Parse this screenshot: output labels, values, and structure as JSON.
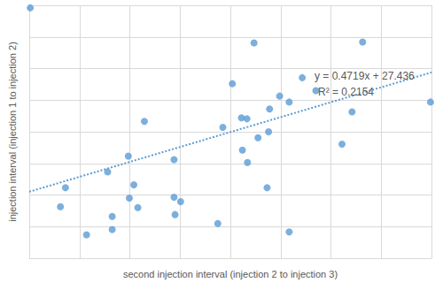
{
  "chart_data": {
    "type": "scatter",
    "x_label": "second injection interval (injection 2 to injection 3)",
    "y_label": "injection interval (injection 1 to injection 2)",
    "x": [
      50.2,
      57.2,
      56.2,
      61.4,
      65.6,
      66.5,
      66.5,
      69.7,
      69.9,
      70.8,
      71.6,
      72.9,
      78.8,
      78.8,
      79.0,
      80.1,
      87.5,
      88.5,
      90.4,
      92.2,
      92.4,
      93.4,
      93.3,
      94.7,
      95.5,
      97.3,
      97.6,
      97.8,
      99.8,
      101.7,
      101.7,
      104.3,
      107.0,
      112.2,
      114.2,
      116.3,
      129.8
    ],
    "values": [
      109.2,
      52.3,
      46.3,
      37.4,
      57.3,
      43.2,
      39.1,
      62.3,
      49.0,
      53.2,
      46.0,
      73.3,
      61.2,
      49.3,
      43.8,
      47.9,
      41.0,
      71.4,
      85.2,
      74.4,
      64.2,
      60.3,
      74.1,
      98.1,
      68.1,
      52.3,
      70.0,
      77.2,
      81.3,
      79.4,
      38.3,
      87.1,
      83.0,
      66.1,
      76.3,
      98.4,
      79.4
    ],
    "color": "#5b9bd5",
    "marker": "circle",
    "trendline": {
      "slope": 0.4719,
      "intercept": 27.436,
      "line_style": "dotted"
    },
    "annotations": [
      "y = 0.4719x + 27.436",
      "R² = 0.2154"
    ],
    "xlim": [
      50,
      130
    ],
    "xticks": [
      50,
      60,
      70,
      80,
      90,
      100,
      110,
      120,
      130
    ],
    "ylim": [
      30,
      110
    ],
    "yticks": [
      30,
      40,
      50,
      60,
      70,
      80,
      90,
      100,
      110
    ],
    "grid": true,
    "tick_labels": false
  }
}
